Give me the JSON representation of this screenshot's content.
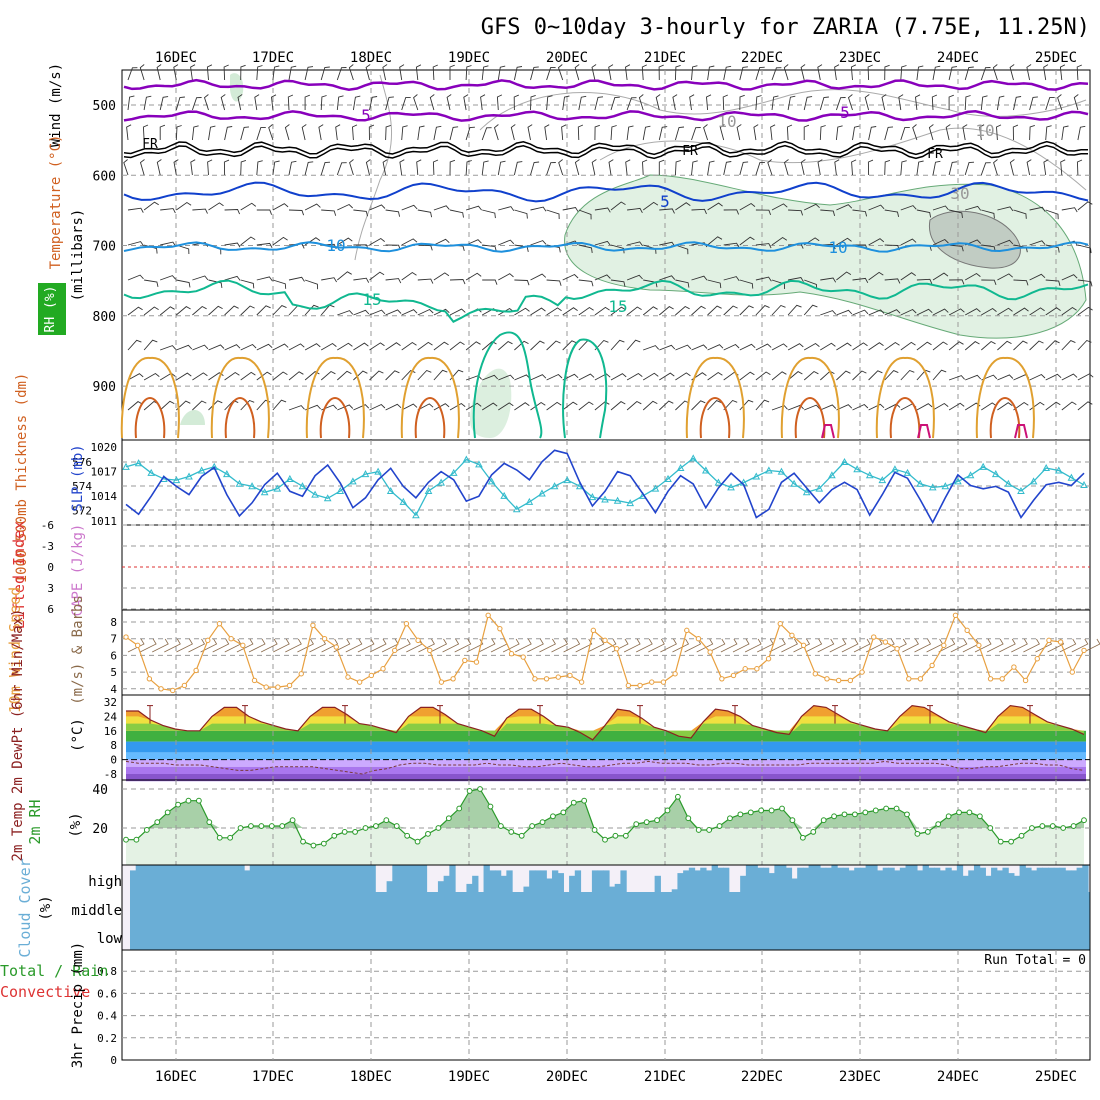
{
  "title": "GFS 0~10day 3-hourly for ZARIA (7.75E, 11.25N)",
  "dates": [
    "16DEC",
    "17DEC",
    "18DEC",
    "19DEC",
    "20DEC",
    "21DEC",
    "22DEC",
    "23DEC",
    "24DEC",
    "25DEC"
  ],
  "colors": {
    "violet": "#8800bb",
    "black": "#000000",
    "blue": "#1040cc",
    "skyblue": "#1e90dd",
    "teal": "#10b890",
    "orange": "#e0a030",
    "darkorange": "#d06020",
    "magenta": "#cc1177",
    "rhfill": "#a8d8b0",
    "cyan": "#33bbcc",
    "slp": "#2244cc",
    "wind": "#e8a040",
    "rh2m": "#2a9a2a",
    "cloud": "#6aaed6",
    "lifted": "#dd3333"
  },
  "panels": {
    "upper": {
      "ylabels": [
        "Wind (m/s)",
        "Temperature (°C)",
        "RH (%)",
        "(millibars)"
      ],
      "ticks": [
        "500",
        "600",
        "700",
        "800",
        "900"
      ],
      "contour_labels": [
        "5",
        "5",
        "FR",
        "FR",
        "FR",
        "5",
        "10",
        "10",
        "15",
        "15",
        "10",
        "10",
        "30"
      ]
    },
    "thickness": {
      "ylabel_left": "1000-500mb Thickness (dm)",
      "ylabel_right": "SLP (mb)",
      "left_ticks": [
        "576",
        "574",
        "572"
      ],
      "right_ticks": [
        "1020",
        "1017",
        "1014",
        "1011"
      ]
    },
    "cape": {
      "ylabel_left": "Lifted Index",
      "ylabel_right": "CAPE (J/kg)",
      "ticks": [
        "-6",
        "-3",
        "0",
        "3",
        "6"
      ]
    },
    "wind10m": {
      "ylabel_left": "10m Wind Speed",
      "ylabel_right": "(m/s) & Barbs",
      "ticks": [
        "8",
        "7",
        "6",
        "5",
        "4"
      ]
    },
    "temp2m": {
      "ylabel": "2m Temp 2m DewPt (6hr Min/Max)",
      "unit": "(°C)",
      "ticks": [
        "32",
        "24",
        "16",
        "8",
        "0",
        "-8"
      ]
    },
    "rh2m": {
      "ylabel": "2m RH",
      "unit": "(%)",
      "ticks": [
        "40",
        "20"
      ]
    },
    "cloud": {
      "ylabel": "Cloud Cover",
      "unit": "(%)",
      "levels": [
        "high",
        "middle",
        "low"
      ]
    },
    "precip": {
      "ylabel_left": "Total / Rain",
      "ylabel_left2": "Convective",
      "ylabel_right": "3hr Precip (mm)",
      "ticks": [
        "0.8",
        "0.6",
        "0.4",
        "0.2",
        "0"
      ],
      "run_total": "Run Total = 0"
    }
  },
  "chart_data": [
    {
      "type": "line",
      "title": "1000-500mb Thickness (dm) / SLP (mb)",
      "x_unit": "3-hourly steps from 15DEC 12Z",
      "series": [
        {
          "name": "1000-500mb Thickness (dm)",
          "values": [
            575.6,
            575.9,
            575.1,
            574.6,
            574.5,
            574.8,
            575.3,
            575.6,
            575.0,
            574.2,
            574.0,
            573.5,
            573.8,
            574.6,
            574.0,
            573.3,
            573.0,
            573.6,
            574.4,
            575.0,
            575.2,
            573.6,
            572.7,
            571.6,
            573.6,
            574.3,
            575.1,
            576.2,
            575.8,
            574.4,
            573.2,
            572.1,
            572.7,
            573.4,
            574.0,
            574.5,
            574.0,
            573.1,
            572.9,
            572.8,
            572.6,
            573.2,
            573.8,
            574.6,
            575.5,
            576.3,
            575.3,
            574.3,
            573.9,
            574.3,
            574.8,
            575.3,
            575.2,
            574.2,
            573.5,
            573.8,
            574.9,
            576.0,
            575.4,
            574.9,
            574.5,
            575.4,
            575.1,
            574.2,
            573.9,
            574.0,
            574.4,
            574.9,
            575.6,
            575.0,
            574.2,
            573.6,
            574.4,
            575.5,
            575.3,
            574.7,
            574.1
          ]
        },
        {
          "name": "SLP (mb)",
          "values": [
            1013.0,
            1011.8,
            1014.0,
            1016.4,
            1015.2,
            1014.2,
            1016.4,
            1017.5,
            1014.2,
            1011.6,
            1013.2,
            1015.4,
            1016.8,
            1014.6,
            1014.0,
            1016.5,
            1017.8,
            1015.6,
            1012.6,
            1013.8,
            1016.0,
            1017.4,
            1015.2,
            1013.8,
            1015.7,
            1017.0,
            1016.0,
            1013.4,
            1014.0,
            1016.6,
            1018.0,
            1017.2,
            1016.0,
            1018.2,
            1019.6,
            1019.2,
            1015.7,
            1012.8,
            1014.6,
            1017.0,
            1016.5,
            1014.3,
            1012.0,
            1014.6,
            1016.5,
            1015.5,
            1012.6,
            1015.0,
            1016.8,
            1015.4,
            1011.4,
            1012.4,
            1015.7,
            1016.8,
            1015.0,
            1013.2,
            1014.8,
            1015.7,
            1014.8,
            1011.7,
            1014.2,
            1016.9,
            1016.2,
            1013.6,
            1010.8,
            1013.8,
            1016.6,
            1015.3,
            1014.9,
            1015.2,
            1014.5,
            1011.4,
            1013.5,
            1015.4,
            1015.7,
            1015.3,
            1016.8
          ]
        }
      ]
    },
    {
      "type": "line",
      "title": "10m Wind Speed (m/s)",
      "ylim": [
        4,
        8.5
      ],
      "series": [
        {
          "name": "10m Wind Speed",
          "values": [
            7.1,
            6.6,
            4.6,
            4.0,
            3.9,
            4.2,
            5.1,
            6.9,
            7.9,
            7.0,
            6.6,
            4.5,
            4.1,
            4.1,
            4.2,
            4.9,
            7.8,
            7.0,
            6.5,
            4.7,
            4.4,
            4.8,
            5.2,
            6.3,
            7.9,
            6.9,
            6.3,
            4.4,
            4.6,
            5.7,
            5.6,
            8.4,
            7.6,
            6.1,
            5.9,
            4.6,
            4.6,
            4.7,
            4.8,
            4.4,
            7.5,
            6.9,
            6.4,
            4.2,
            4.2,
            4.4,
            4.4,
            4.9,
            7.5,
            7.0,
            6.2,
            4.6,
            4.8,
            5.2,
            5.2,
            5.8,
            7.9,
            7.2,
            6.6,
            4.9,
            4.6,
            4.5,
            4.5,
            5.0,
            7.1,
            6.8,
            6.4,
            4.6,
            4.6,
            5.4,
            6.6,
            8.4,
            7.5,
            6.6,
            4.6,
            4.6,
            5.3,
            4.5,
            5.8,
            6.9,
            6.8,
            5.0,
            6.3
          ]
        }
      ]
    },
    {
      "type": "area",
      "title": "2m Temp / 2m DewPt (°C)",
      "series": [
        {
          "name": "2m Temp",
          "values": [
            27,
            27,
            22,
            19,
            17,
            16,
            16,
            24,
            29,
            29,
            24,
            21,
            19,
            17,
            16,
            24,
            29,
            29,
            25,
            20,
            19,
            17,
            15,
            24,
            29,
            29,
            25,
            20,
            18,
            16,
            13,
            23,
            28,
            28,
            24,
            19,
            18,
            15,
            11,
            19,
            28,
            27,
            23,
            18,
            16,
            13,
            12,
            21,
            28,
            27,
            24,
            19,
            17,
            15,
            14,
            24,
            30,
            29,
            25,
            21,
            19,
            17,
            16,
            24,
            30,
            29,
            25,
            21,
            19,
            17,
            15,
            24,
            30,
            29,
            25,
            21,
            19,
            17,
            14
          ]
        },
        {
          "name": "2m DewPt",
          "values": [
            -1,
            -2,
            -2,
            -2,
            -3,
            -3,
            -3,
            -4,
            -5,
            -6,
            -6,
            -5,
            -4,
            -4,
            -4,
            -4,
            -5,
            -6,
            -7,
            -8,
            -6,
            -5,
            -3,
            -2,
            -2,
            -3,
            -3,
            -3,
            -3,
            -2,
            -3,
            -3,
            -4,
            -4,
            -3,
            -2,
            -3,
            -4,
            -4,
            -3,
            -2,
            -2,
            -1,
            -2,
            -2,
            -2,
            -3,
            -3,
            -2,
            -2,
            -3,
            -3,
            -3,
            -3,
            -3,
            -2,
            -2,
            -2,
            -2,
            -2,
            -2,
            -1,
            -2,
            -2,
            -2,
            -2,
            -3,
            -5,
            -5,
            -4,
            -4,
            -3,
            -2,
            -2,
            -3,
            -3,
            -5,
            -6
          ]
        }
      ]
    },
    {
      "type": "area",
      "title": "2m RH (%)",
      "series": [
        {
          "name": "2m RH",
          "values": [
            14,
            14,
            19,
            23,
            28,
            32,
            34,
            34,
            23,
            15,
            15,
            20,
            21,
            21,
            21,
            21,
            24,
            13,
            11,
            12,
            16,
            18,
            18,
            20,
            21,
            24,
            21,
            16,
            13,
            17,
            20,
            25,
            30,
            39,
            40,
            31,
            21,
            18,
            16,
            21,
            23,
            26,
            28,
            33,
            34,
            19,
            14,
            16,
            16,
            22,
            23,
            24,
            29,
            36,
            25,
            19,
            19,
            21,
            25,
            27,
            28,
            29,
            29,
            30,
            24,
            15,
            18,
            24,
            26,
            27,
            27,
            28,
            29,
            30,
            30,
            27,
            17,
            18,
            22,
            26,
            28,
            28,
            26,
            20,
            13,
            13,
            16,
            20,
            21,
            21,
            20,
            21,
            24
          ]
        }
      ]
    },
    {
      "type": "bar",
      "title": "Cloud Cover (%)",
      "levels": [
        "high",
        "middle",
        "low"
      ],
      "series": [
        {
          "name": "high",
          "values": [
            80,
            100,
            100,
            100,
            100,
            100,
            100,
            100,
            100,
            100,
            100,
            100,
            100,
            100,
            100,
            100,
            100,
            100,
            100,
            100,
            80,
            100,
            100,
            100,
            100,
            100,
            100,
            100,
            100,
            100,
            100,
            100,
            100,
            100,
            100,
            100,
            100,
            100,
            100,
            100,
            100,
            100,
            100,
            0,
            0,
            40,
            100,
            100,
            100,
            100,
            100,
            100,
            0,
            0,
            40,
            60,
            100,
            0,
            0,
            30,
            60,
            0,
            100,
            80,
            80,
            60,
            80,
            0,
            0,
            20,
            80,
            80,
            80,
            50,
            80,
            70,
            0,
            60,
            80,
            0,
            0,
            80,
            80,
            80,
            20,
            30,
            80,
            0,
            0,
            0,
            0,
            0,
            60,
            0,
            0,
            10,
            70,
            80,
            90,
            80,
            90,
            80,
            100,
            90,
            90,
            0,
            0,
            60,
            100,
            100,
            90,
            90,
            70,
            100,
            100,
            90,
            50,
            90,
            90,
            100,
            100,
            90,
            90,
            100,
            90,
            90,
            80,
            90,
            90,
            100,
            100,
            80,
            90,
            90,
            80,
            90,
            100,
            100,
            80,
            100,
            90,
            90,
            80,
            90,
            80,
            100,
            60,
            80,
            100,
            90,
            60,
            90,
            80,
            90,
            70,
            60,
            100,
            90,
            80,
            90,
            90,
            90,
            90,
            90,
            80,
            80,
            90,
            100
          ]
        },
        {
          "name": "middle",
          "values": [
            0,
            0,
            0,
            0,
            0,
            0,
            0,
            0,
            0,
            0,
            0,
            0,
            0,
            0,
            0,
            0,
            0,
            0,
            0,
            0,
            0,
            0,
            0,
            0,
            0,
            0,
            0,
            0,
            0,
            0,
            0,
            0,
            0,
            0,
            0,
            0,
            0,
            0,
            0,
            0,
            0,
            0,
            0,
            0,
            0,
            0,
            0,
            0,
            0,
            0,
            0,
            0,
            0,
            0,
            0,
            0,
            0,
            0,
            0,
            0,
            0,
            0,
            0,
            0,
            0,
            0,
            0,
            0,
            0,
            0,
            0,
            0,
            0,
            0,
            0,
            0,
            0,
            0,
            0,
            0
          ]
        },
        {
          "name": "low",
          "values": [
            0,
            0,
            0,
            0,
            0,
            0,
            0,
            0,
            0,
            0,
            0,
            0,
            0,
            0,
            0,
            0,
            0,
            0,
            0,
            0,
            0,
            0,
            0,
            0,
            0,
            0,
            0,
            0,
            0,
            0,
            0,
            0,
            0,
            0,
            0,
            0,
            0,
            0,
            0,
            0,
            0,
            0,
            0,
            0,
            0,
            0,
            0,
            0,
            0,
            0,
            0,
            0,
            0,
            0,
            0,
            0,
            0,
            0,
            0,
            0,
            0,
            0,
            0,
            0,
            0,
            0,
            0,
            0,
            0,
            0,
            0,
            0,
            0,
            0,
            0,
            0,
            0,
            0,
            0,
            0
          ]
        }
      ]
    },
    {
      "type": "bar",
      "title": "3hr Precip (mm)",
      "ylim": [
        0,
        0.9
      ],
      "series": [
        {
          "name": "Total / Rain",
          "values": []
        },
        {
          "name": "Convective",
          "values": []
        }
      ]
    }
  ]
}
